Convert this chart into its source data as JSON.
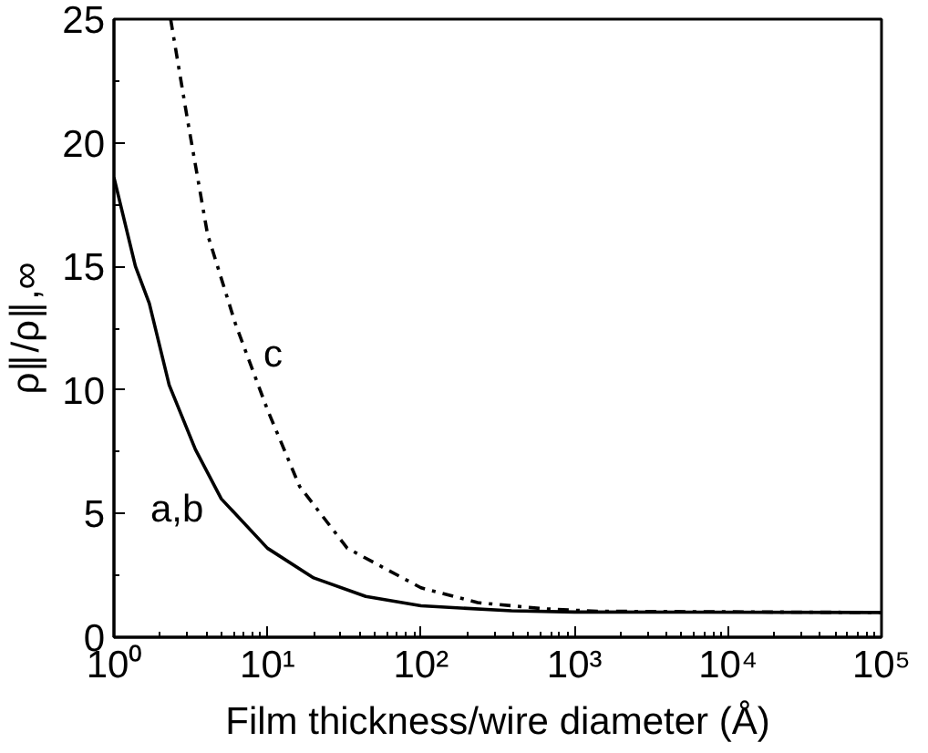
{
  "chart_data": {
    "type": "line",
    "xlabel": "Film thickness/wire diameter (Å)",
    "ylabel": "ρ∥/ρ∥,∞",
    "log": "x",
    "grid": false,
    "marker": "none",
    "xlim": [
      1,
      100000
    ],
    "ylim": [
      0,
      25
    ],
    "xticks": [
      {
        "value": 1,
        "label": "10⁰"
      },
      {
        "value": 10,
        "label": "10¹"
      },
      {
        "value": 100,
        "label": "10²"
      },
      {
        "value": 1000,
        "label": "10³"
      },
      {
        "value": 10000,
        "label": "10⁴"
      },
      {
        "value": 100000,
        "label": "10⁵"
      }
    ],
    "yticks": [
      0,
      5,
      10,
      15,
      20,
      25
    ],
    "series": [
      {
        "color": "#000000",
        "line_style": "solid",
        "x": [
          1,
          1.38,
          1.7,
          2.29,
          3.39,
          5.0,
          10,
          20,
          43.7,
          100,
          389,
          1000,
          100000
        ],
        "values": [
          18.6,
          15.0,
          13.5,
          10.2,
          7.6,
          5.6,
          3.6,
          2.4,
          1.65,
          1.27,
          1.07,
          1.02,
          1.0
        ]
      },
      {
        "color": "#000000",
        "line_style": "dashdot",
        "x": [
          2.34,
          3.02,
          4.07,
          6.17,
          10,
          16.2,
          33.1,
          100,
          234,
          631,
          1413,
          100000
        ],
        "values": [
          25,
          20.9,
          16.3,
          12.7,
          9.2,
          6.1,
          3.6,
          2.0,
          1.4,
          1.15,
          1.05,
          1.0
        ]
      }
    ],
    "annotations": [
      "a,b",
      "c"
    ]
  }
}
